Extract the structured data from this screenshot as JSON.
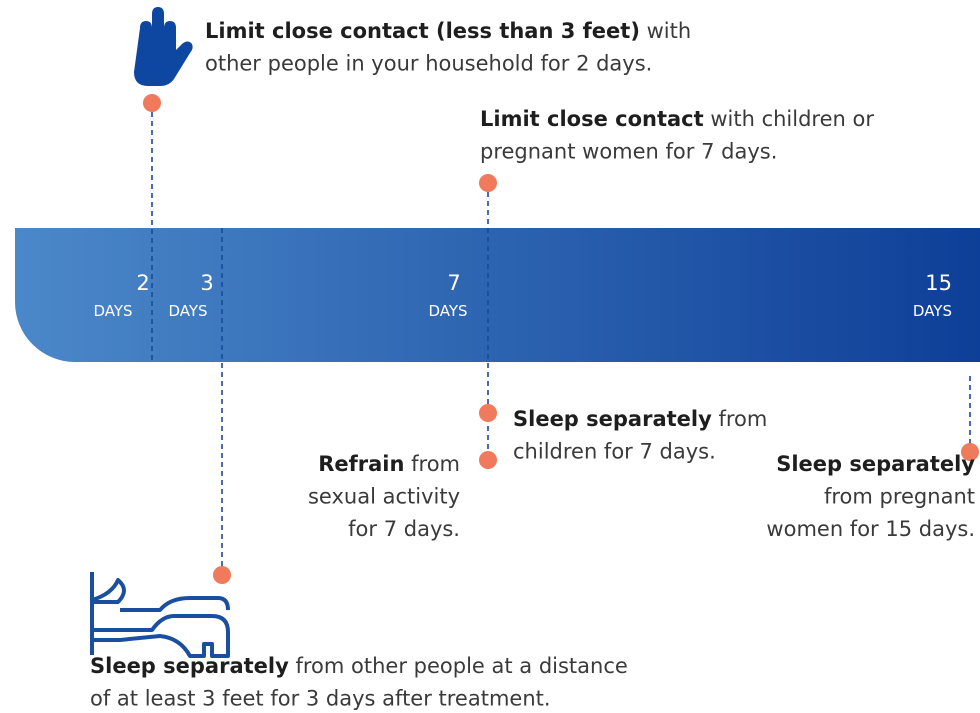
{
  "markers": [
    {
      "number": "2",
      "unit": "DAYS"
    },
    {
      "number": "3",
      "unit": "DAYS"
    },
    {
      "number": "7",
      "unit": "DAYS"
    },
    {
      "number": "15",
      "unit": "DAYS"
    }
  ],
  "notes": [
    {
      "lines": [
        [
          {
            "text": "Limit close contact (less than 3 feet)",
            "bold": true
          },
          {
            "text": " with",
            "bold": false
          }
        ],
        [
          {
            "text": "other people in your household for 2 days.",
            "bold": false
          }
        ]
      ]
    },
    {
      "lines": [
        [
          {
            "text": "Limit close contact",
            "bold": true
          },
          {
            "text": " with children or",
            "bold": false
          }
        ],
        [
          {
            "text": "pregnant women for 7 days.",
            "bold": false
          }
        ]
      ]
    },
    {
      "lines": [
        [
          {
            "text": "Sleep separately",
            "bold": true
          },
          {
            "text": " from",
            "bold": false
          }
        ],
        [
          {
            "text": "children for 7 days.",
            "bold": false
          }
        ]
      ]
    },
    {
      "lines": [
        [
          {
            "text": "Refrain",
            "bold": true
          },
          {
            "text": " from",
            "bold": false
          }
        ],
        [
          {
            "text": "sexual activity",
            "bold": false
          }
        ],
        [
          {
            "text": "for 7 days.",
            "bold": false
          }
        ]
      ]
    },
    {
      "lines": [
        [
          {
            "text": "Sleep separately",
            "bold": true
          }
        ],
        [
          {
            "text": "from pregnant",
            "bold": false
          }
        ],
        [
          {
            "text": "women for 15 days.",
            "bold": false
          }
        ]
      ]
    },
    {
      "lines": [
        [
          {
            "text": "Sleep separately",
            "bold": true
          },
          {
            "text": " from other people at a distance",
            "bold": false
          }
        ],
        [
          {
            "text": "of at least 3 feet for 3 days after treatment.",
            "bold": false
          }
        ]
      ]
    }
  ]
}
